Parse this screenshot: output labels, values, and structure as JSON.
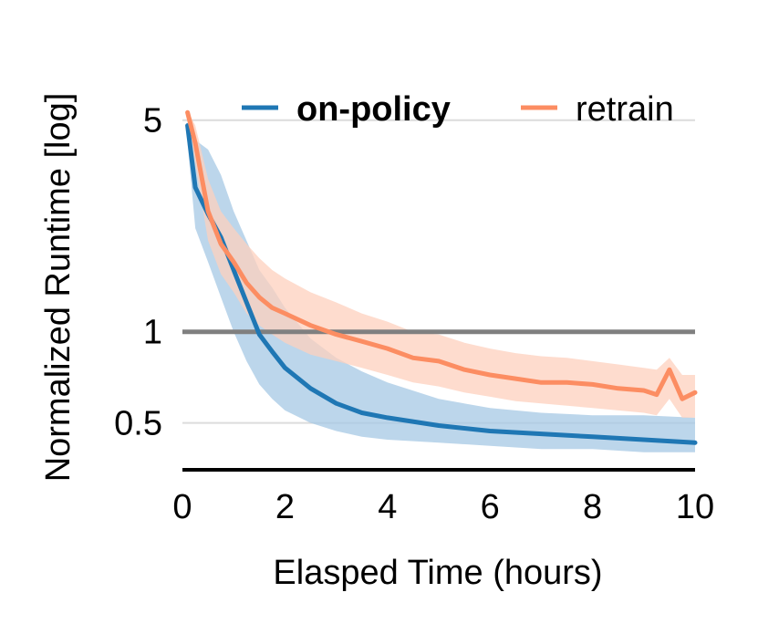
{
  "chart_data": {
    "type": "line",
    "title": "",
    "xlabel": "Elasped Time (hours)",
    "ylabel": "Normalized Runtime [log]",
    "xlim": [
      0,
      10
    ],
    "ylim": [
      0.35,
      5.5
    ],
    "y_scale": "log",
    "x_ticks": [
      0,
      2,
      4,
      6,
      8,
      10
    ],
    "x_tick_labels": [
      "0",
      "2",
      "4",
      "6",
      "8",
      "10"
    ],
    "y_ticks": [
      0.5,
      1,
      5
    ],
    "y_tick_labels": [
      "0.5",
      "1",
      "5"
    ],
    "grid": "horizontal at y ticks",
    "reference_line": 1,
    "legend": {
      "placement": "top-right"
    },
    "series": [
      {
        "name": "on-policy",
        "color": "#1f77b4",
        "band_color": "#a6c8e4",
        "emphasis": "bold",
        "x": [
          0.1,
          0.25,
          0.5,
          0.75,
          1.0,
          1.25,
          1.5,
          1.75,
          2.0,
          2.5,
          3.0,
          3.5,
          4.0,
          5.0,
          6.0,
          7.0,
          8.0,
          9.0,
          10.0
        ],
        "y": [
          4.8,
          3.0,
          2.45,
          2.05,
          1.6,
          1.25,
          0.98,
          0.86,
          0.76,
          0.65,
          0.58,
          0.54,
          0.52,
          0.49,
          0.47,
          0.46,
          0.45,
          0.44,
          0.43
        ],
        "y_upper": [
          5.0,
          4.3,
          4.0,
          3.3,
          2.5,
          2.0,
          1.6,
          1.4,
          1.2,
          0.95,
          0.82,
          0.74,
          0.68,
          0.6,
          0.56,
          0.54,
          0.53,
          0.53,
          0.52
        ],
        "y_lower": [
          4.2,
          2.2,
          1.7,
          1.3,
          1.0,
          0.8,
          0.67,
          0.6,
          0.55,
          0.5,
          0.47,
          0.45,
          0.44,
          0.43,
          0.42,
          0.41,
          0.41,
          0.4,
          0.4
        ]
      },
      {
        "name": "retrain",
        "color": "#fc8d62",
        "band_color": "#fdd0bd",
        "emphasis": "normal",
        "x": [
          0.1,
          0.25,
          0.5,
          0.75,
          1.0,
          1.25,
          1.5,
          1.75,
          2.0,
          2.5,
          3.0,
          3.5,
          4.0,
          4.5,
          5.0,
          5.5,
          6.0,
          6.5,
          7.0,
          7.5,
          8.0,
          8.5,
          9.0,
          9.25,
          9.5,
          9.75,
          10.0
        ],
        "y": [
          5.3,
          4.2,
          2.5,
          1.95,
          1.7,
          1.45,
          1.3,
          1.2,
          1.15,
          1.05,
          0.98,
          0.93,
          0.88,
          0.82,
          0.8,
          0.75,
          0.72,
          0.7,
          0.68,
          0.68,
          0.67,
          0.65,
          0.64,
          0.62,
          0.75,
          0.6,
          0.63
        ],
        "y_upper": [
          5.4,
          4.8,
          3.2,
          2.5,
          2.2,
          1.95,
          1.75,
          1.6,
          1.5,
          1.35,
          1.25,
          1.15,
          1.08,
          1.0,
          0.98,
          0.92,
          0.88,
          0.85,
          0.83,
          0.82,
          0.8,
          0.78,
          0.76,
          0.75,
          0.82,
          0.72,
          0.72
        ],
        "y_lower": [
          5.0,
          3.6,
          2.0,
          1.55,
          1.35,
          1.15,
          1.05,
          0.98,
          0.92,
          0.84,
          0.8,
          0.76,
          0.72,
          0.68,
          0.66,
          0.63,
          0.61,
          0.59,
          0.58,
          0.57,
          0.56,
          0.55,
          0.54,
          0.53,
          0.6,
          0.52,
          0.52
        ]
      }
    ]
  }
}
